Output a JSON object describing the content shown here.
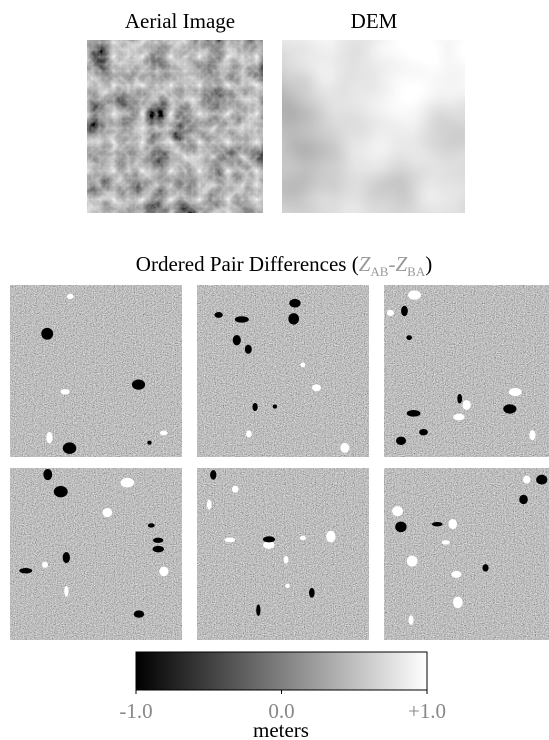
{
  "panels": {
    "aerial_title": "Aerial Image",
    "dem_title": "DEM"
  },
  "heading": {
    "text": "Ordered Pair Differences",
    "open": "(",
    "z1": "Z",
    "sub1": "AB",
    "minus": "-",
    "z2": "Z",
    "sub2": "BA",
    "close": ")"
  },
  "colorbar": {
    "ticks": [
      {
        "value": -1,
        "label": "-1.0"
      },
      {
        "value": 0,
        "label": "0.0"
      },
      {
        "value": 1,
        "label": "+1.0"
      }
    ],
    "label": "meters"
  }
}
